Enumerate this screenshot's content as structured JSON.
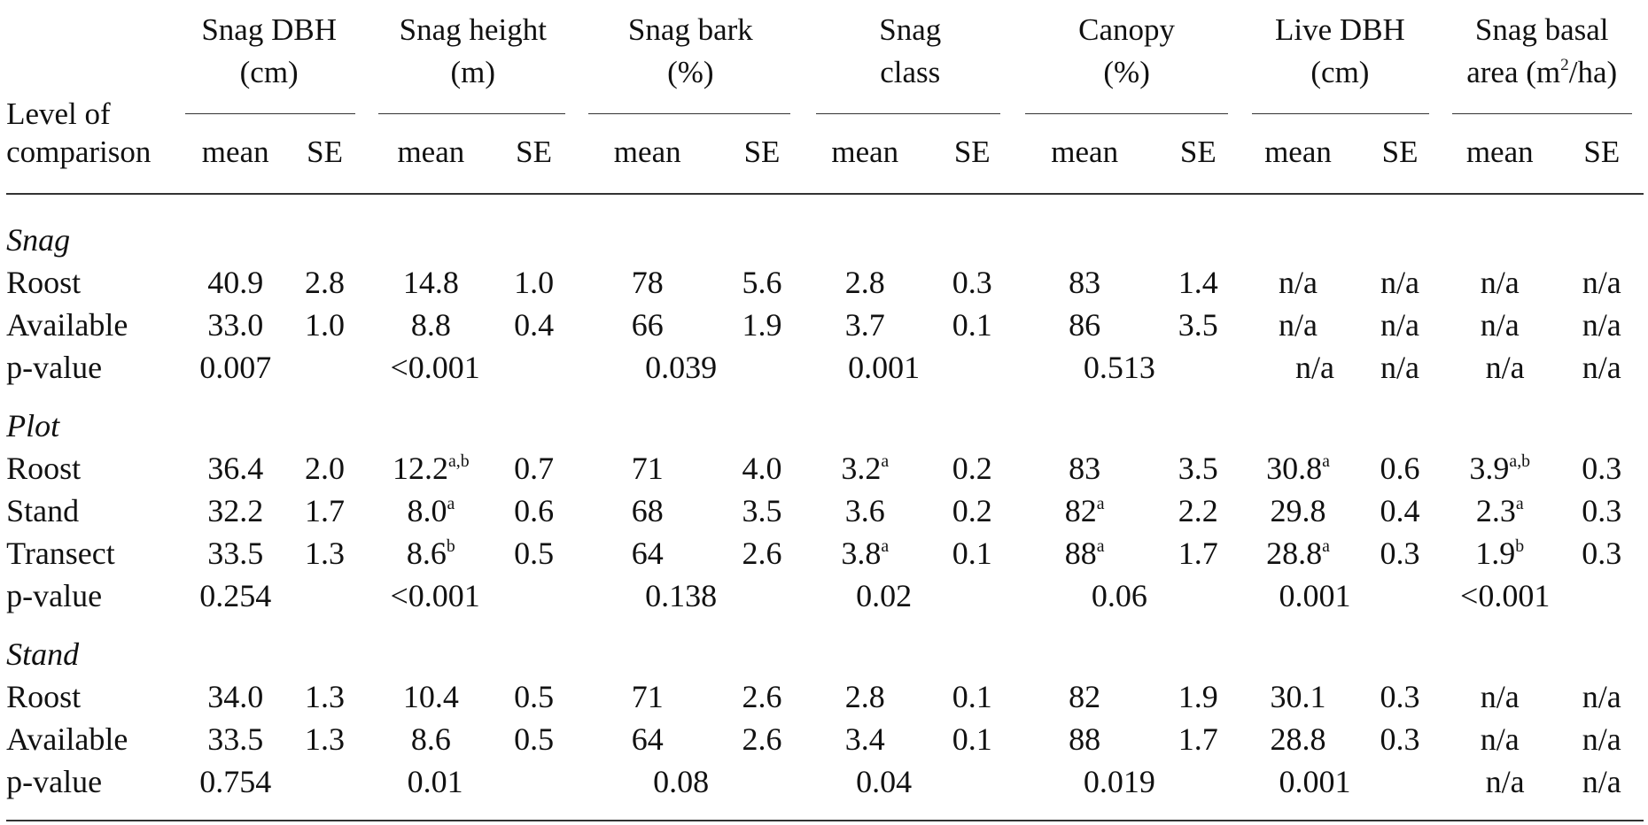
{
  "header": {
    "row_label": [
      "Level of",
      "comparison"
    ],
    "groups": [
      {
        "line1": "Snag DBH",
        "line2": "(cm)",
        "sup": "",
        "line2_post": ""
      },
      {
        "line1": "Snag height",
        "line2": "(m)",
        "sup": "",
        "line2_post": ""
      },
      {
        "line1": "Snag bark",
        "line2": "(%)",
        "sup": "",
        "line2_post": ""
      },
      {
        "line1": "Snag",
        "line2": "class",
        "sup": "",
        "line2_post": ""
      },
      {
        "line1": "Canopy",
        "line2": "(%)",
        "sup": "",
        "line2_post": ""
      },
      {
        "line1": "Live DBH",
        "line2": "(cm)",
        "sup": "",
        "line2_post": ""
      },
      {
        "line1": "Snag basal",
        "line2": "area (m",
        "sup": "2",
        "line2_post": "/ha)"
      }
    ],
    "sub": [
      "mean",
      "SE"
    ]
  },
  "sections": [
    {
      "title": "Snag",
      "rows": [
        {
          "label": "Roost",
          "cells": [
            [
              "40.9",
              ""
            ],
            [
              "2.8",
              ""
            ],
            [
              "14.8",
              ""
            ],
            [
              "1.0",
              ""
            ],
            [
              "78",
              ""
            ],
            [
              "5.6",
              ""
            ],
            [
              "2.8",
              ""
            ],
            [
              "0.3",
              ""
            ],
            [
              "83",
              ""
            ],
            [
              "1.4",
              ""
            ],
            [
              "n/a",
              ""
            ],
            [
              "n/a",
              ""
            ],
            [
              "n/a",
              ""
            ],
            [
              "n/a",
              ""
            ]
          ]
        },
        {
          "label": "Available",
          "cells": [
            [
              "33.0",
              ""
            ],
            [
              "1.0",
              ""
            ],
            [
              "8.8",
              ""
            ],
            [
              "0.4",
              ""
            ],
            [
              "66",
              ""
            ],
            [
              "1.9",
              ""
            ],
            [
              "3.7",
              ""
            ],
            [
              "0.1",
              ""
            ],
            [
              "86",
              ""
            ],
            [
              "3.5",
              ""
            ],
            [
              "n/a",
              ""
            ],
            [
              "n/a",
              ""
            ],
            [
              "n/a",
              ""
            ],
            [
              "n/a",
              ""
            ]
          ]
        }
      ],
      "pvals": [
        "0.007",
        "<0.001",
        "0.039",
        "0.001",
        "0.513",
        "n/a",
        "n/a",
        "n/a",
        "n/a"
      ]
    },
    {
      "title": "Plot",
      "rows": [
        {
          "label": "Roost",
          "cells": [
            [
              "36.4",
              ""
            ],
            [
              "2.0",
              ""
            ],
            [
              "12.2",
              "a,b"
            ],
            [
              "0.7",
              ""
            ],
            [
              "71",
              ""
            ],
            [
              "4.0",
              ""
            ],
            [
              "3.2",
              "a"
            ],
            [
              "0.2",
              ""
            ],
            [
              "83",
              ""
            ],
            [
              "3.5",
              ""
            ],
            [
              "30.8",
              "a"
            ],
            [
              "0.6",
              ""
            ],
            [
              "3.9",
              "a,b"
            ],
            [
              "0.3",
              ""
            ]
          ]
        },
        {
          "label": "Stand",
          "cells": [
            [
              "32.2",
              ""
            ],
            [
              "1.7",
              ""
            ],
            [
              "8.0",
              "a"
            ],
            [
              "0.6",
              ""
            ],
            [
              "68",
              ""
            ],
            [
              "3.5",
              ""
            ],
            [
              "3.6",
              ""
            ],
            [
              "0.2",
              ""
            ],
            [
              "82",
              "a"
            ],
            [
              "2.2",
              ""
            ],
            [
              "29.8",
              ""
            ],
            [
              "0.4",
              ""
            ],
            [
              "2.3",
              "a"
            ],
            [
              "0.3",
              ""
            ]
          ]
        },
        {
          "label": "Transect",
          "cells": [
            [
              "33.5",
              ""
            ],
            [
              "1.3",
              ""
            ],
            [
              "8.6",
              "b"
            ],
            [
              "0.5",
              ""
            ],
            [
              "64",
              ""
            ],
            [
              "2.6",
              ""
            ],
            [
              "3.8",
              "a"
            ],
            [
              "0.1",
              ""
            ],
            [
              "88",
              "a"
            ],
            [
              "1.7",
              ""
            ],
            [
              "28.8",
              "a"
            ],
            [
              "0.3",
              ""
            ],
            [
              "1.9",
              "b"
            ],
            [
              "0.3",
              ""
            ]
          ]
        }
      ],
      "pvals": [
        "0.254",
        "<0.001",
        "0.138",
        "0.02",
        "0.06",
        "0.001",
        "",
        "<0.001",
        ""
      ]
    },
    {
      "title": "Stand",
      "rows": [
        {
          "label": "Roost",
          "cells": [
            [
              "34.0",
              ""
            ],
            [
              "1.3",
              ""
            ],
            [
              "10.4",
              ""
            ],
            [
              "0.5",
              ""
            ],
            [
              "71",
              ""
            ],
            [
              "2.6",
              ""
            ],
            [
              "2.8",
              ""
            ],
            [
              "0.1",
              ""
            ],
            [
              "82",
              ""
            ],
            [
              "1.9",
              ""
            ],
            [
              "30.1",
              ""
            ],
            [
              "0.3",
              ""
            ],
            [
              "n/a",
              ""
            ],
            [
              "n/a",
              ""
            ]
          ]
        },
        {
          "label": "Available",
          "cells": [
            [
              "33.5",
              ""
            ],
            [
              "1.3",
              ""
            ],
            [
              "8.6",
              ""
            ],
            [
              "0.5",
              ""
            ],
            [
              "64",
              ""
            ],
            [
              "2.6",
              ""
            ],
            [
              "3.4",
              ""
            ],
            [
              "0.1",
              ""
            ],
            [
              "88",
              ""
            ],
            [
              "1.7",
              ""
            ],
            [
              "28.8",
              ""
            ],
            [
              "0.3",
              ""
            ],
            [
              "n/a",
              ""
            ],
            [
              "n/a",
              ""
            ]
          ]
        }
      ],
      "pvals": [
        "0.754",
        "0.01",
        "0.08",
        "0.04",
        "0.019",
        "0.001",
        "",
        "n/a",
        "n/a"
      ]
    }
  ],
  "pvalue_label": "p-value"
}
